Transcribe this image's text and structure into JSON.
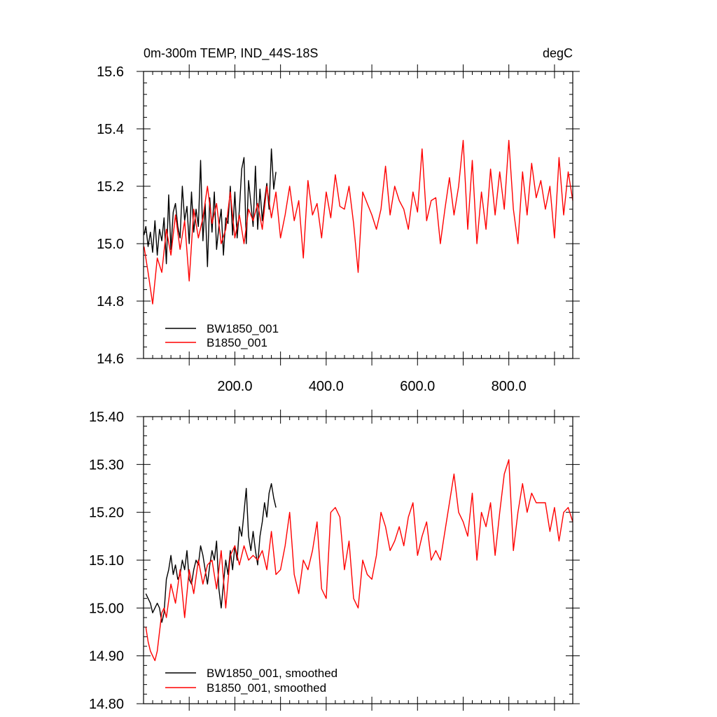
{
  "chart_data": [
    {
      "type": "line",
      "title": "0m-300m TEMP, IND_44S-18S",
      "units": "degC",
      "xlabel": "",
      "ylabel": "",
      "xlim": [
        0,
        940
      ],
      "ylim": [
        14.6,
        15.6
      ],
      "x_ticks": [
        200,
        400,
        600,
        800
      ],
      "x_tick_labels": [
        "200.0",
        "400.0",
        "600.0",
        "800.0"
      ],
      "y_ticks": [
        14.6,
        14.8,
        15.0,
        15.2,
        15.4,
        15.6
      ],
      "y_tick_labels": [
        "14.6",
        "14.8",
        "15.0",
        "15.2",
        "15.4",
        "15.6"
      ],
      "legend_position": "bottom-left",
      "series": [
        {
          "name": "BW1850_001",
          "color": "#000000",
          "x": [
            1,
            5,
            10,
            15,
            20,
            25,
            30,
            35,
            40,
            45,
            50,
            55,
            60,
            65,
            70,
            75,
            80,
            85,
            90,
            95,
            100,
            105,
            110,
            115,
            120,
            125,
            130,
            135,
            140,
            145,
            150,
            155,
            160,
            165,
            170,
            175,
            180,
            185,
            190,
            195,
            200,
            205,
            210,
            215,
            220,
            225,
            230,
            235,
            240,
            245,
            250,
            255,
            260,
            265,
            270,
            275,
            280,
            285,
            290
          ],
          "values": [
            15.03,
            15.06,
            14.99,
            15.04,
            14.97,
            15.08,
            14.96,
            15.05,
            15.01,
            15.09,
            14.93,
            15.17,
            14.98,
            15.11,
            15.14,
            15.06,
            15.02,
            15.2,
            15.08,
            15.13,
            15.0,
            15.18,
            15.04,
            15.12,
            15.06,
            15.29,
            15.01,
            15.14,
            14.92,
            15.16,
            15.04,
            15.18,
            14.98,
            15.06,
            15.12,
            14.96,
            15.09,
            15.07,
            15.2,
            15.03,
            15.18,
            15.02,
            15.12,
            15.26,
            15.3,
            15.0,
            15.22,
            15.14,
            15.06,
            15.27,
            15.05,
            15.19,
            15.08,
            15.15,
            15.21,
            15.12,
            15.33,
            15.19,
            15.25
          ]
        },
        {
          "name": "B1850_001",
          "color": "#ff0000",
          "x": [
            1,
            10,
            20,
            30,
            40,
            50,
            60,
            70,
            80,
            90,
            100,
            110,
            120,
            130,
            140,
            150,
            160,
            170,
            180,
            190,
            200,
            210,
            220,
            230,
            240,
            250,
            260,
            270,
            280,
            290,
            300,
            310,
            320,
            330,
            340,
            350,
            360,
            370,
            380,
            390,
            400,
            410,
            420,
            430,
            440,
            450,
            460,
            470,
            480,
            490,
            500,
            510,
            520,
            530,
            540,
            550,
            560,
            570,
            580,
            590,
            600,
            610,
            620,
            630,
            640,
            650,
            660,
            670,
            680,
            690,
            700,
            710,
            720,
            730,
            740,
            750,
            760,
            770,
            780,
            790,
            800,
            810,
            820,
            830,
            840,
            850,
            860,
            870,
            880,
            890,
            900,
            910,
            920,
            930,
            940
          ],
          "values": [
            14.99,
            14.9,
            14.79,
            14.95,
            14.9,
            15.05,
            14.96,
            15.1,
            14.98,
            15.08,
            14.87,
            15.12,
            15.02,
            15.09,
            15.2,
            15.07,
            15.14,
            15.0,
            15.05,
            15.18,
            15.02,
            15.1,
            15.0,
            15.12,
            15.08,
            15.14,
            15.05,
            15.2,
            15.09,
            15.18,
            15.02,
            15.1,
            15.2,
            15.08,
            15.15,
            14.95,
            15.22,
            15.1,
            15.14,
            15.02,
            15.18,
            15.09,
            15.24,
            15.13,
            15.12,
            15.2,
            15.07,
            14.9,
            15.18,
            15.14,
            15.1,
            15.05,
            15.12,
            15.27,
            15.1,
            15.2,
            15.15,
            15.12,
            15.05,
            15.18,
            15.11,
            15.33,
            15.08,
            15.15,
            15.16,
            15.0,
            15.12,
            15.23,
            15.1,
            15.2,
            15.36,
            15.05,
            15.29,
            15.0,
            15.18,
            15.05,
            15.26,
            15.1,
            15.25,
            15.12,
            15.36,
            15.12,
            15.0,
            15.25,
            15.1,
            15.28,
            15.16,
            15.22,
            15.12,
            15.2,
            15.02,
            15.3,
            15.1,
            15.25,
            15.15
          ]
        }
      ]
    },
    {
      "type": "line",
      "title": "",
      "xlabel": "",
      "ylabel": "",
      "xlim": [
        0,
        940
      ],
      "ylim": [
        14.8,
        15.4
      ],
      "y_ticks": [
        14.8,
        14.9,
        15.0,
        15.1,
        15.2,
        15.3,
        15.4
      ],
      "y_tick_labels": [
        "14.80",
        "14.90",
        "15.00",
        "15.10",
        "15.20",
        "15.30",
        "15.40"
      ],
      "legend_position": "bottom-left",
      "series": [
        {
          "name": "BW1850_001, smoothed",
          "color": "#000000",
          "x": [
            5,
            10,
            15,
            20,
            25,
            30,
            35,
            40,
            45,
            50,
            55,
            60,
            65,
            70,
            75,
            80,
            85,
            90,
            95,
            100,
            105,
            110,
            115,
            120,
            125,
            130,
            135,
            140,
            145,
            150,
            155,
            160,
            165,
            170,
            175,
            180,
            185,
            190,
            195,
            200,
            205,
            210,
            215,
            220,
            225,
            230,
            235,
            240,
            245,
            250,
            255,
            260,
            265,
            270,
            275,
            280,
            285,
            290
          ],
          "values": [
            15.03,
            15.02,
            15.01,
            14.99,
            15.0,
            15.01,
            15.0,
            14.97,
            14.99,
            15.06,
            15.08,
            15.11,
            15.07,
            15.09,
            15.06,
            15.07,
            15.1,
            15.08,
            15.12,
            15.06,
            15.05,
            15.08,
            15.1,
            15.09,
            15.13,
            15.11,
            15.08,
            15.05,
            15.09,
            15.12,
            15.1,
            15.14,
            15.04,
            15.0,
            15.05,
            15.1,
            15.07,
            15.12,
            15.08,
            15.13,
            15.1,
            15.17,
            15.15,
            15.2,
            15.25,
            15.15,
            15.12,
            15.16,
            15.12,
            15.09,
            15.15,
            15.18,
            15.22,
            15.19,
            15.24,
            15.26,
            15.23,
            15.21
          ]
        },
        {
          "name": "B1850_001, smoothed",
          "color": "#ff0000",
          "x": [
            5,
            10,
            15,
            20,
            25,
            30,
            35,
            40,
            45,
            50,
            60,
            70,
            80,
            90,
            100,
            110,
            120,
            130,
            140,
            150,
            160,
            170,
            180,
            190,
            200,
            210,
            220,
            230,
            240,
            250,
            260,
            270,
            280,
            290,
            300,
            310,
            320,
            330,
            340,
            350,
            360,
            370,
            380,
            390,
            400,
            410,
            420,
            430,
            440,
            450,
            460,
            470,
            480,
            490,
            500,
            510,
            520,
            530,
            540,
            550,
            560,
            570,
            580,
            590,
            600,
            610,
            620,
            630,
            640,
            650,
            660,
            670,
            680,
            690,
            700,
            710,
            720,
            730,
            740,
            750,
            760,
            770,
            780,
            790,
            800,
            810,
            820,
            830,
            840,
            850,
            860,
            870,
            880,
            890,
            900,
            910,
            920,
            930,
            940
          ],
          "values": [
            14.96,
            14.93,
            14.91,
            14.9,
            14.89,
            14.91,
            14.95,
            14.99,
            15.0,
            14.98,
            15.05,
            15.01,
            15.08,
            14.98,
            15.08,
            15.03,
            15.1,
            15.05,
            15.09,
            15.1,
            15.04,
            15.12,
            15.0,
            15.11,
            15.13,
            15.09,
            15.13,
            15.1,
            15.11,
            15.1,
            15.12,
            15.08,
            15.16,
            15.07,
            15.08,
            15.13,
            15.2,
            15.07,
            15.03,
            15.1,
            15.08,
            15.12,
            15.18,
            15.04,
            15.02,
            15.2,
            15.21,
            15.19,
            15.08,
            15.14,
            15.02,
            15.0,
            15.1,
            15.07,
            15.06,
            15.11,
            15.2,
            15.17,
            15.12,
            15.14,
            15.17,
            15.13,
            15.19,
            15.22,
            15.11,
            15.15,
            15.18,
            15.1,
            15.12,
            15.1,
            15.16,
            15.22,
            15.28,
            15.2,
            15.18,
            15.15,
            15.24,
            15.1,
            15.2,
            15.17,
            15.22,
            15.11,
            15.2,
            15.28,
            15.31,
            15.12,
            15.2,
            15.26,
            15.2,
            15.24,
            15.22,
            15.22,
            15.22,
            15.16,
            15.21,
            15.14,
            15.2,
            15.21,
            15.18
          ]
        }
      ]
    }
  ]
}
